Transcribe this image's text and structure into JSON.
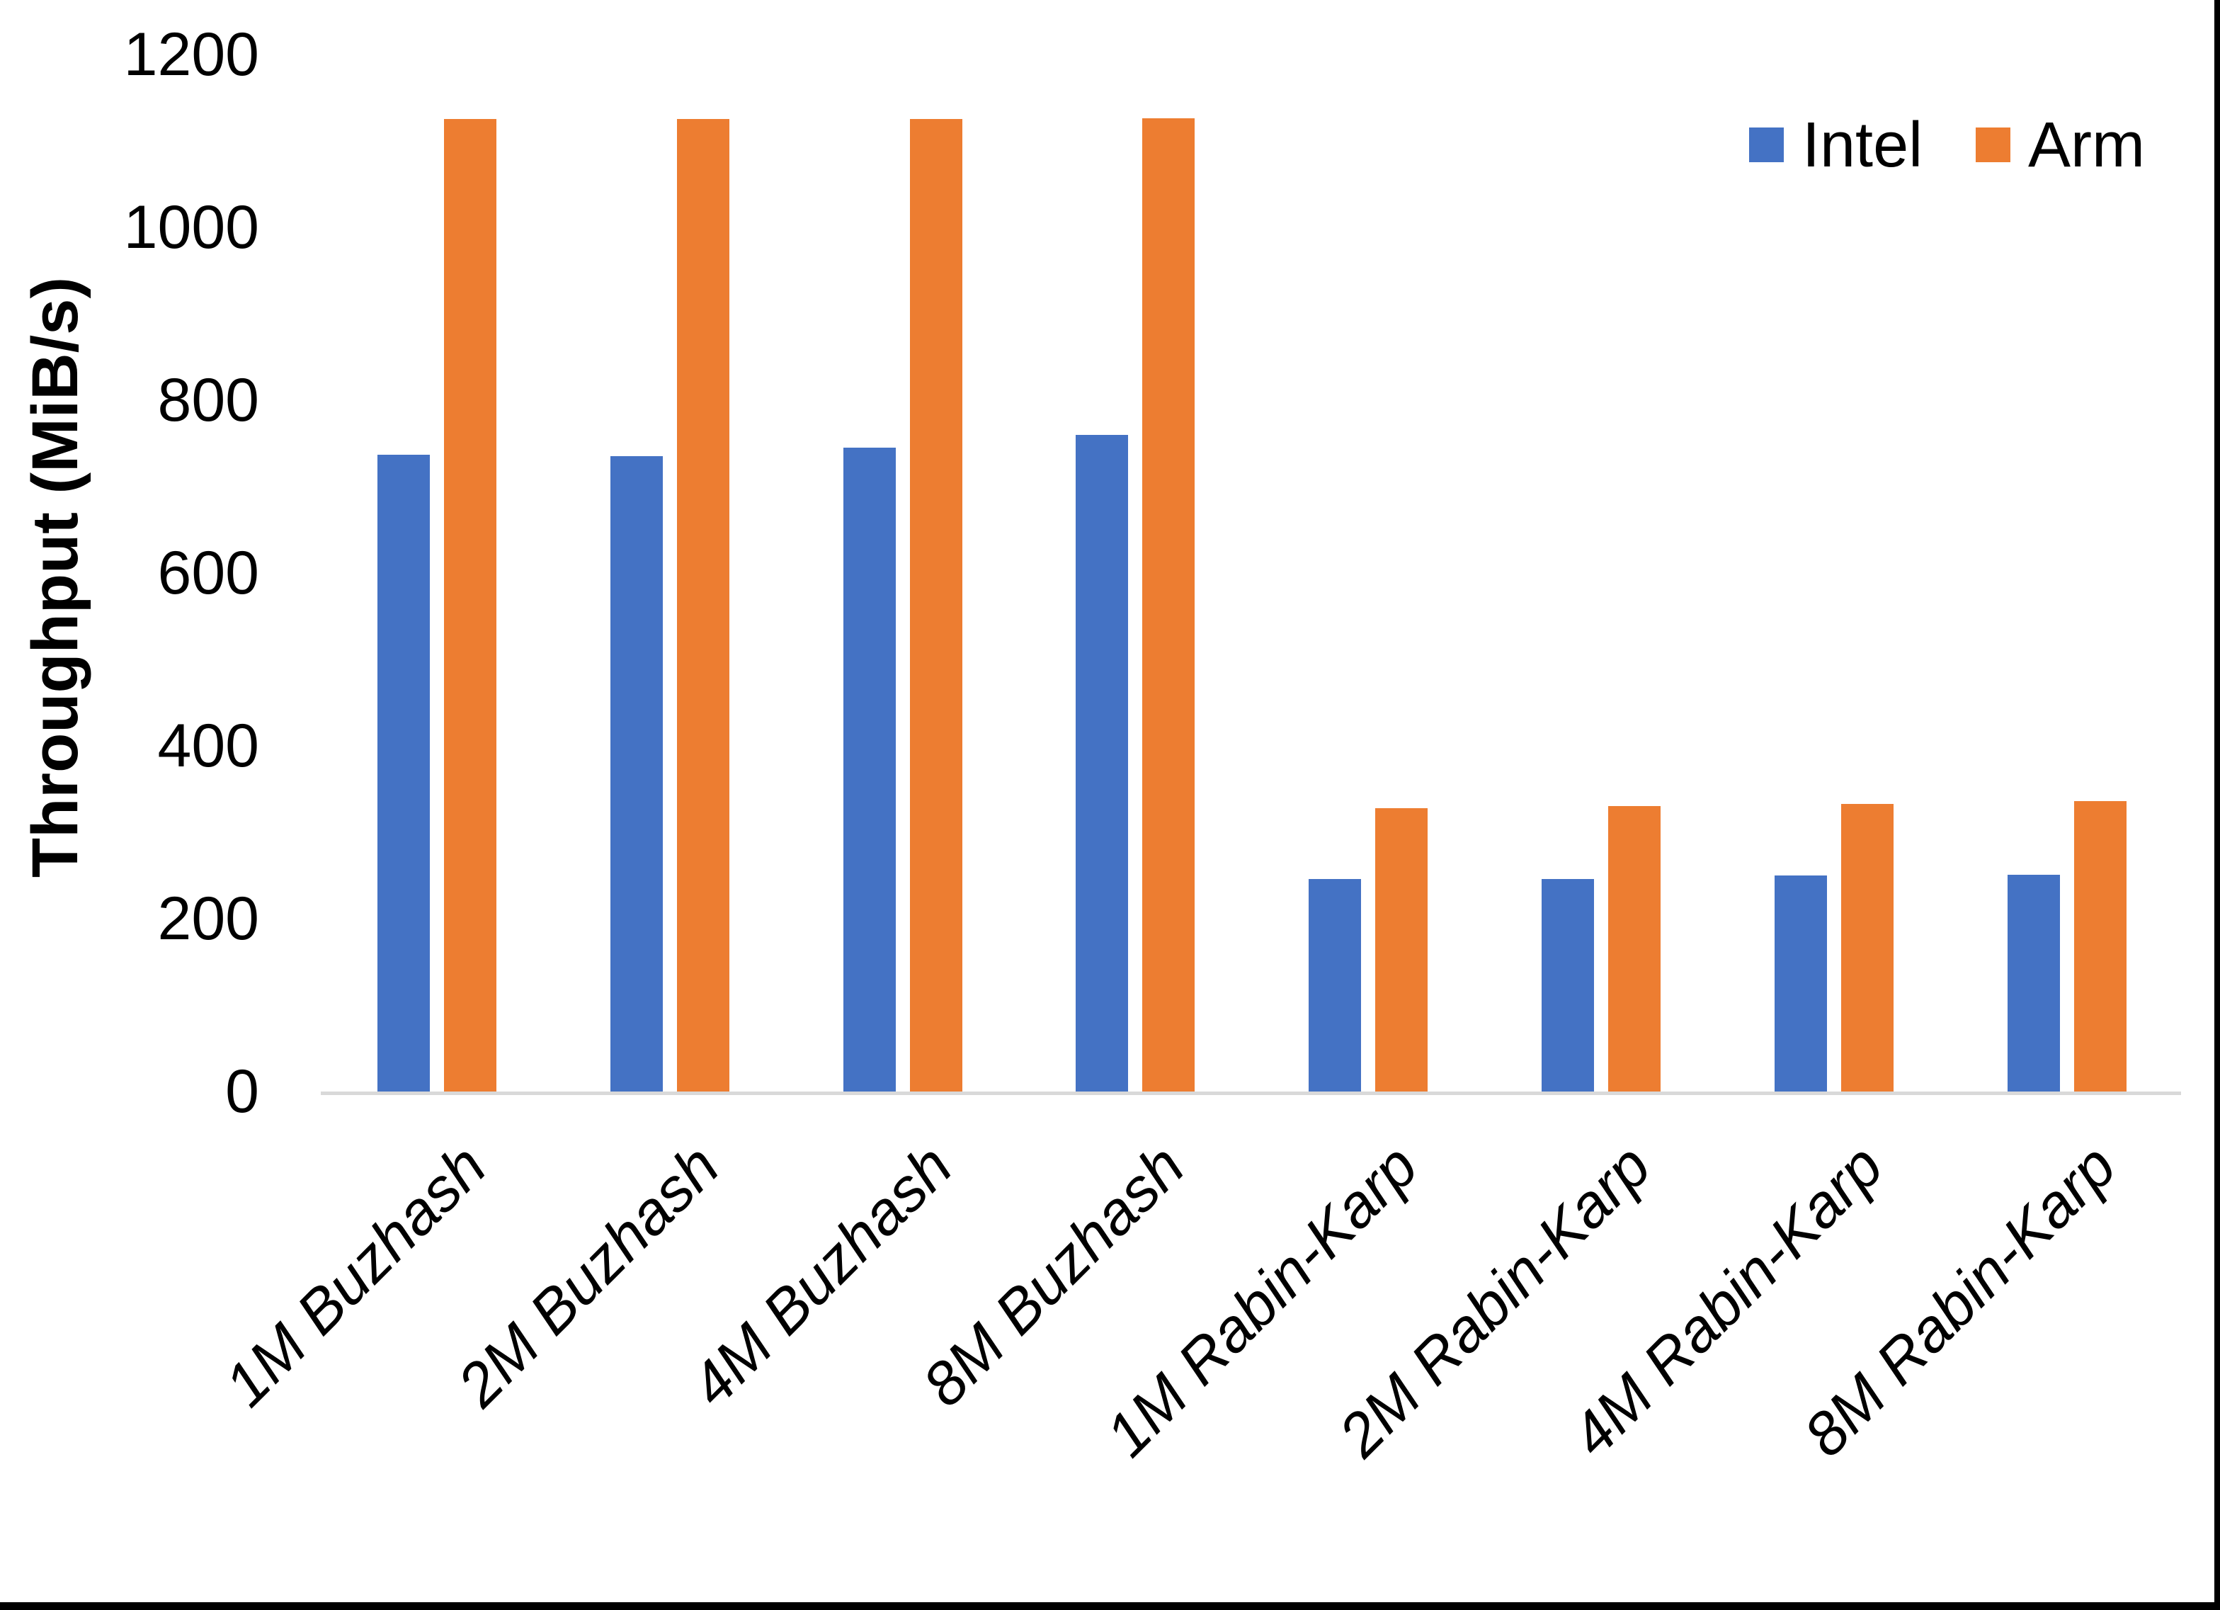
{
  "chart_data": {
    "type": "bar",
    "title": "",
    "ylabel": "Throughput (MiB/s)",
    "xlabel": "",
    "ylim": [
      0,
      1200
    ],
    "yticks": [
      0,
      200,
      400,
      600,
      800,
      1000,
      1200
    ],
    "grid": false,
    "legend_position": "top-right",
    "categories": [
      "1M Buzhash",
      "2M Buzhash",
      "4M Buzhash",
      "8M Buzhash",
      "1M Rabin-Karp",
      "2M Rabin-Karp",
      "4M Rabin-Karp",
      "8M Rabin-Karp"
    ],
    "series": [
      {
        "name": "Intel",
        "color": "#4472C4",
        "values": [
          737,
          735,
          745,
          760,
          246,
          246,
          250,
          251
        ]
      },
      {
        "name": "Arm",
        "color": "#ED7D31",
        "values": [
          1125,
          1125,
          1125,
          1126,
          328,
          330,
          333,
          336
        ]
      }
    ]
  },
  "colors": {
    "background": "#FFFFFF",
    "axis_line": "#D9D9D9",
    "text": "#000000",
    "page_border": "#000000"
  }
}
